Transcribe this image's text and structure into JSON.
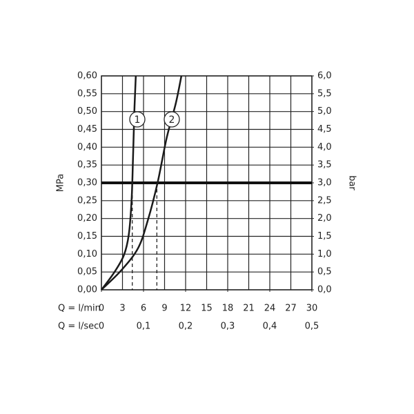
{
  "chart_data": {
    "type": "line",
    "xlabel": "Q = l/min",
    "x2label": "Q = l/sec",
    "ylabel": "MPa",
    "y2label": "bar",
    "xlim": [
      0,
      30
    ],
    "xticks": [
      0,
      3,
      6,
      9,
      12,
      15,
      18,
      21,
      24,
      27,
      30
    ],
    "x2lim": [
      0,
      0.5
    ],
    "x2ticks": [
      0,
      {
        "value": 0.1,
        "label": "0,1"
      },
      {
        "value": 0.2,
        "label": "0,2"
      },
      {
        "value": 0.3,
        "label": "0,3"
      },
      {
        "value": 0.4,
        "label": "0,4"
      },
      {
        "value": 0.5,
        "label": "0,5"
      }
    ],
    "ylim": [
      0,
      0.6
    ],
    "yticks": [
      {
        "value": 0,
        "label": "0,00"
      },
      {
        "value": 0.05,
        "label": "0,05"
      },
      {
        "value": 0.1,
        "label": "0,10"
      },
      {
        "value": 0.15,
        "label": "0,15"
      },
      {
        "value": 0.2,
        "label": "0,20"
      },
      {
        "value": 0.25,
        "label": "0,25"
      },
      {
        "value": 0.3,
        "label": "0,30"
      },
      {
        "value": 0.35,
        "label": "0,35"
      },
      {
        "value": 0.4,
        "label": "0,40"
      },
      {
        "value": 0.45,
        "label": "0,45"
      },
      {
        "value": 0.5,
        "label": "0,50"
      },
      {
        "value": 0.55,
        "label": "0,55"
      },
      {
        "value": 0.6,
        "label": "0,60"
      }
    ],
    "y2lim": [
      0,
      6
    ],
    "y2ticks": [
      {
        "value": 0,
        "label": "0,0"
      },
      {
        "value": 0.5,
        "label": "0,5"
      },
      {
        "value": 1,
        "label": "1,0"
      },
      {
        "value": 1.5,
        "label": "1,5"
      },
      {
        "value": 2,
        "label": "2,0"
      },
      {
        "value": 2.5,
        "label": "2,5"
      },
      {
        "value": 3,
        "label": "3,0"
      },
      {
        "value": 3.5,
        "label": "3,5"
      },
      {
        "value": 4,
        "label": "4,0"
      },
      {
        "value": 4.5,
        "label": "4,5"
      },
      {
        "value": 5,
        "label": "5,0"
      },
      {
        "value": 5.5,
        "label": "5,5"
      },
      {
        "value": 6,
        "label": "6,0"
      }
    ],
    "grid": true,
    "reference_y": 0.3,
    "drop_lines_x": [
      4.4,
      7.9
    ],
    "series": [
      {
        "name": "1",
        "color": "#1a1a1a",
        "x": [
          0,
          1.8,
          3.2,
          3.9,
          4.3,
          4.5,
          4.7,
          4.9
        ],
        "values": [
          0,
          0.048,
          0.097,
          0.155,
          0.252,
          0.368,
          0.504,
          0.6
        ]
      },
      {
        "name": "2",
        "color": "#1a1a1a",
        "x": [
          0,
          2.8,
          5.2,
          6.6,
          8.0,
          9.3,
          10.6,
          11.4
        ],
        "values": [
          0,
          0.054,
          0.116,
          0.194,
          0.3,
          0.426,
          0.523,
          0.6
        ]
      }
    ]
  }
}
